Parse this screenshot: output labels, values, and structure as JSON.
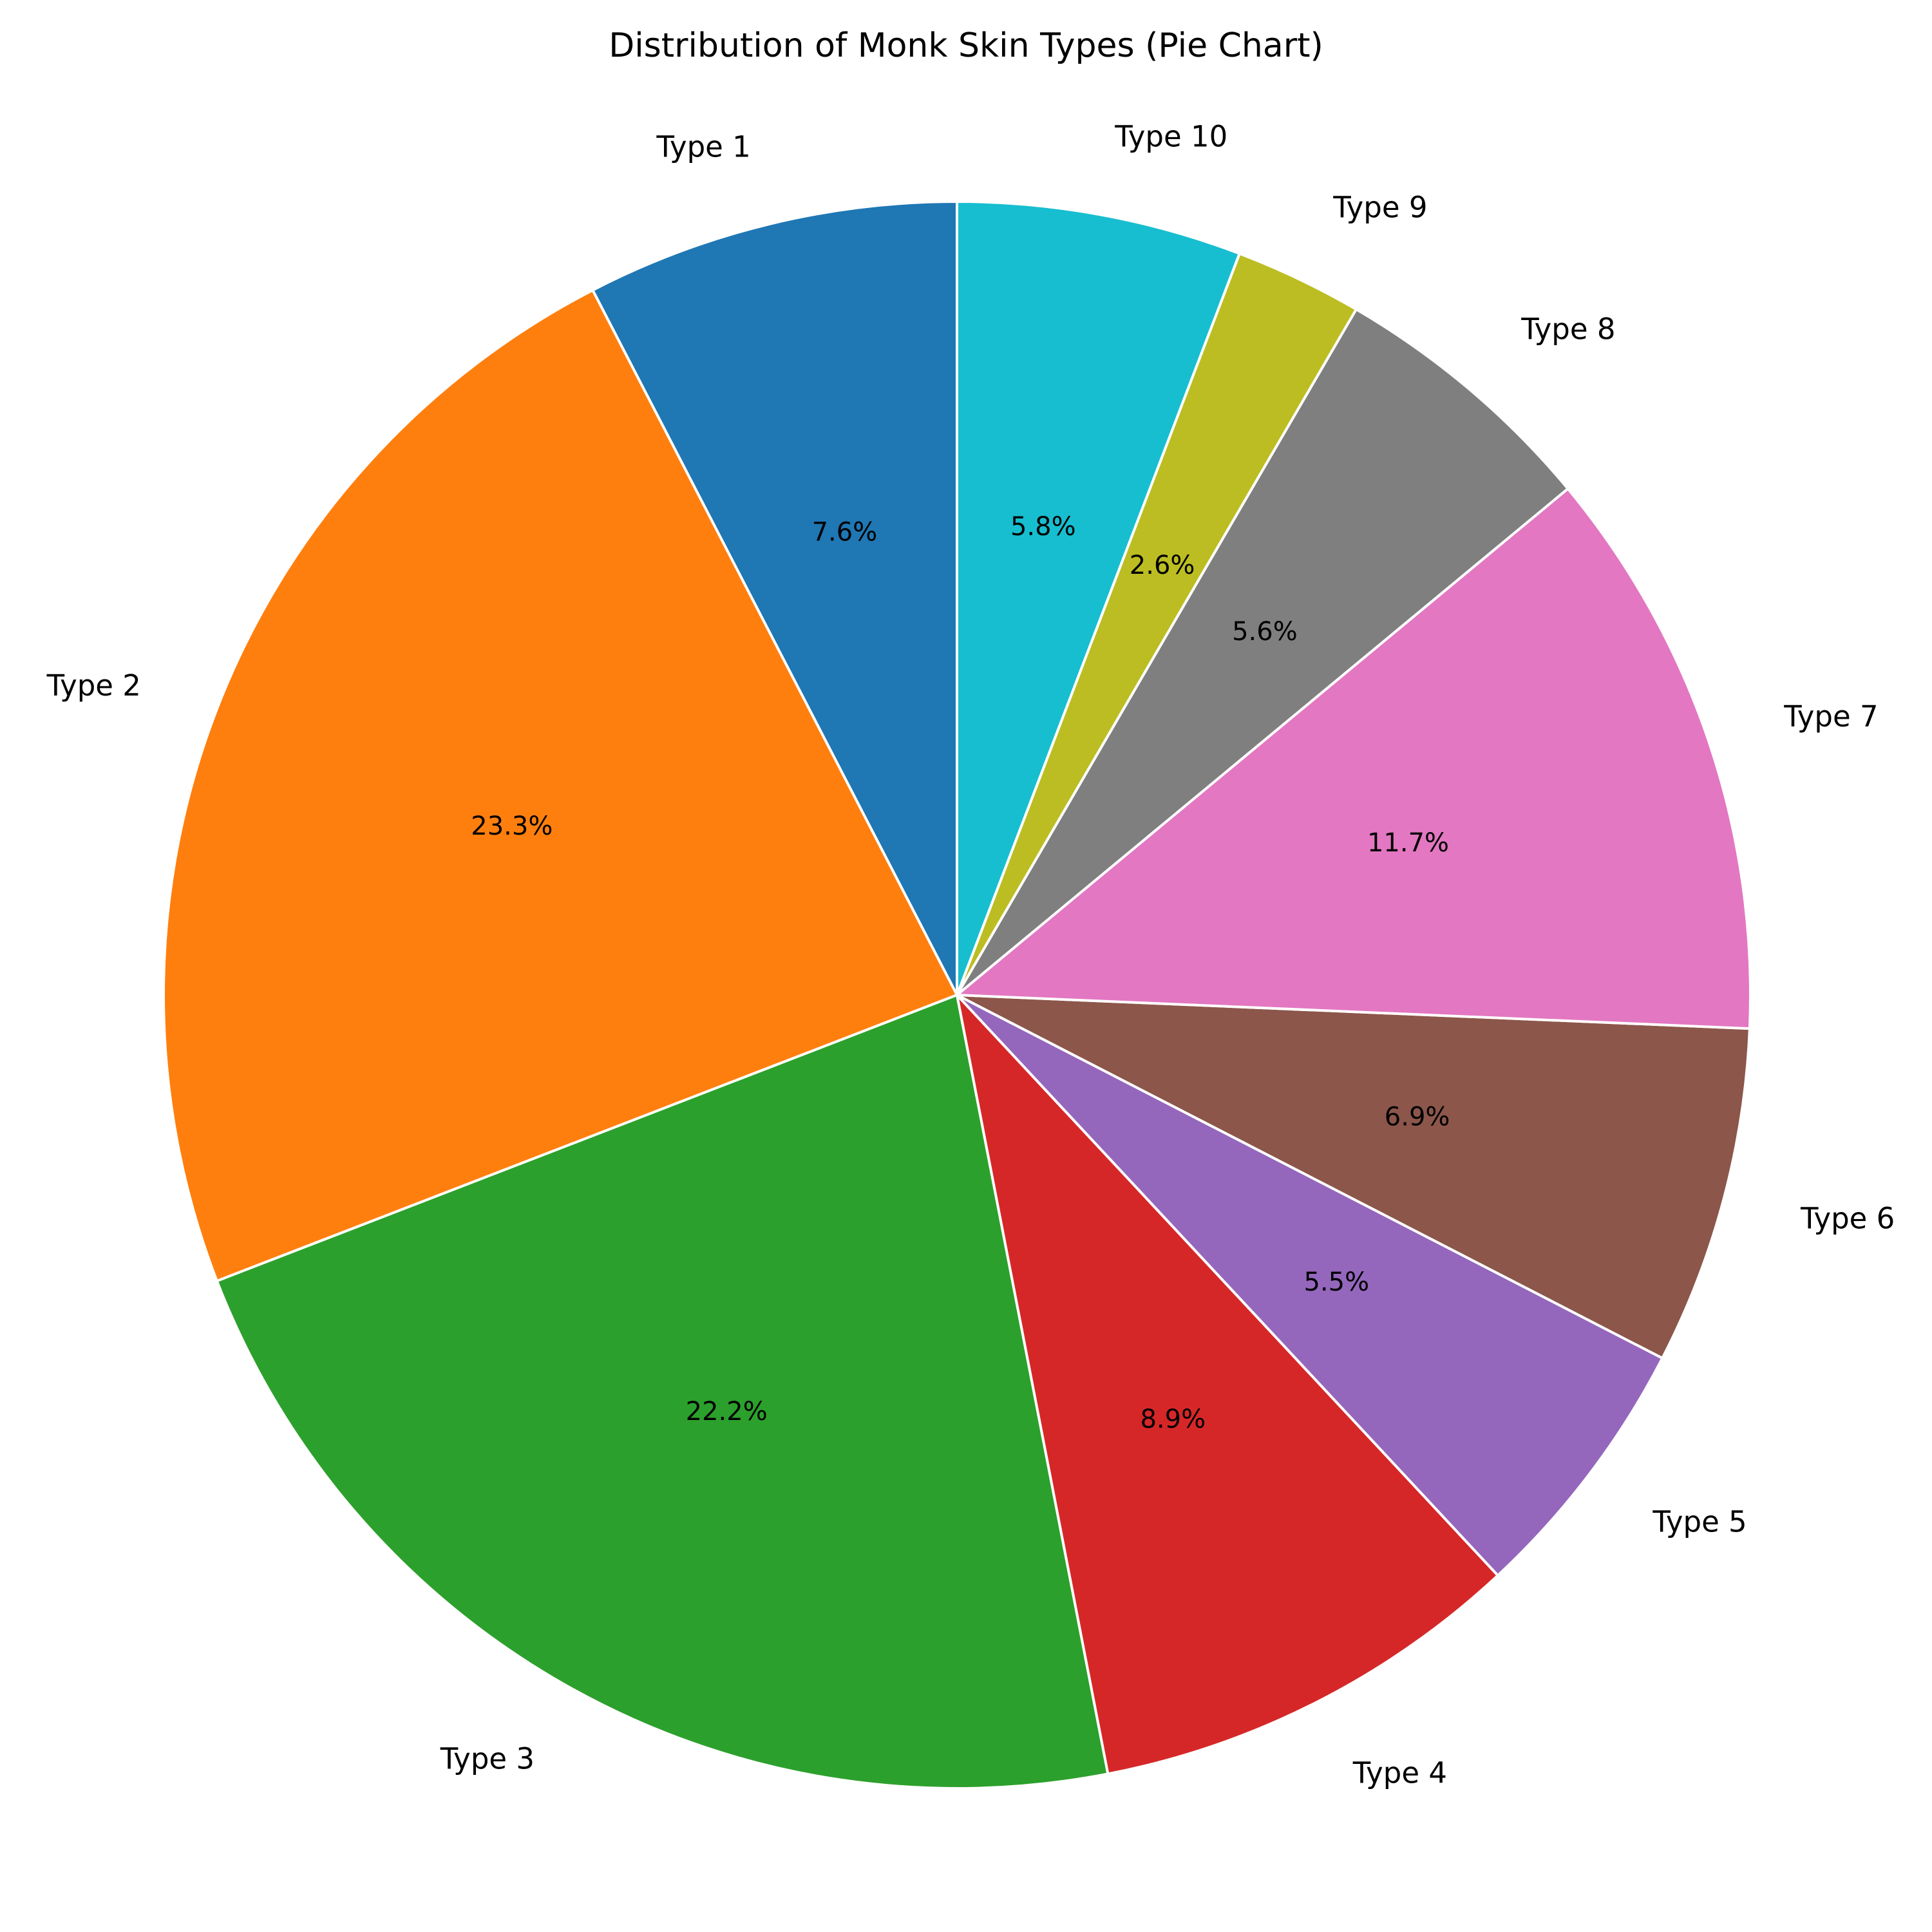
{
  "chart_data": {
    "type": "pie",
    "title": "Distribution of Monk Skin Types (Pie Chart)",
    "start_angle_deg": 90,
    "direction": "counterclockwise",
    "slices": [
      {
        "label": "Type 1",
        "value": 7.6,
        "pct_label": "7.6%",
        "color": "#1f77b4"
      },
      {
        "label": "Type 2",
        "value": 23.3,
        "pct_label": "23.3%",
        "color": "#ff7f0e"
      },
      {
        "label": "Type 3",
        "value": 22.2,
        "pct_label": "22.2%",
        "color": "#2ca02c"
      },
      {
        "label": "Type 4",
        "value": 8.9,
        "pct_label": "8.9%",
        "color": "#d62728"
      },
      {
        "label": "Type 5",
        "value": 5.5,
        "pct_label": "5.5%",
        "color": "#9467bd"
      },
      {
        "label": "Type 6",
        "value": 6.9,
        "pct_label": "6.9%",
        "color": "#8c564b"
      },
      {
        "label": "Type 7",
        "value": 11.7,
        "pct_label": "11.7%",
        "color": "#e377c2"
      },
      {
        "label": "Type 8",
        "value": 5.6,
        "pct_label": "5.6%",
        "color": "#7f7f7f"
      },
      {
        "label": "Type 9",
        "value": 2.6,
        "pct_label": "2.6%",
        "color": "#bcbd22"
      },
      {
        "label": "Type 10",
        "value": 5.8,
        "pct_label": "5.8%",
        "color": "#17becf"
      }
    ]
  }
}
